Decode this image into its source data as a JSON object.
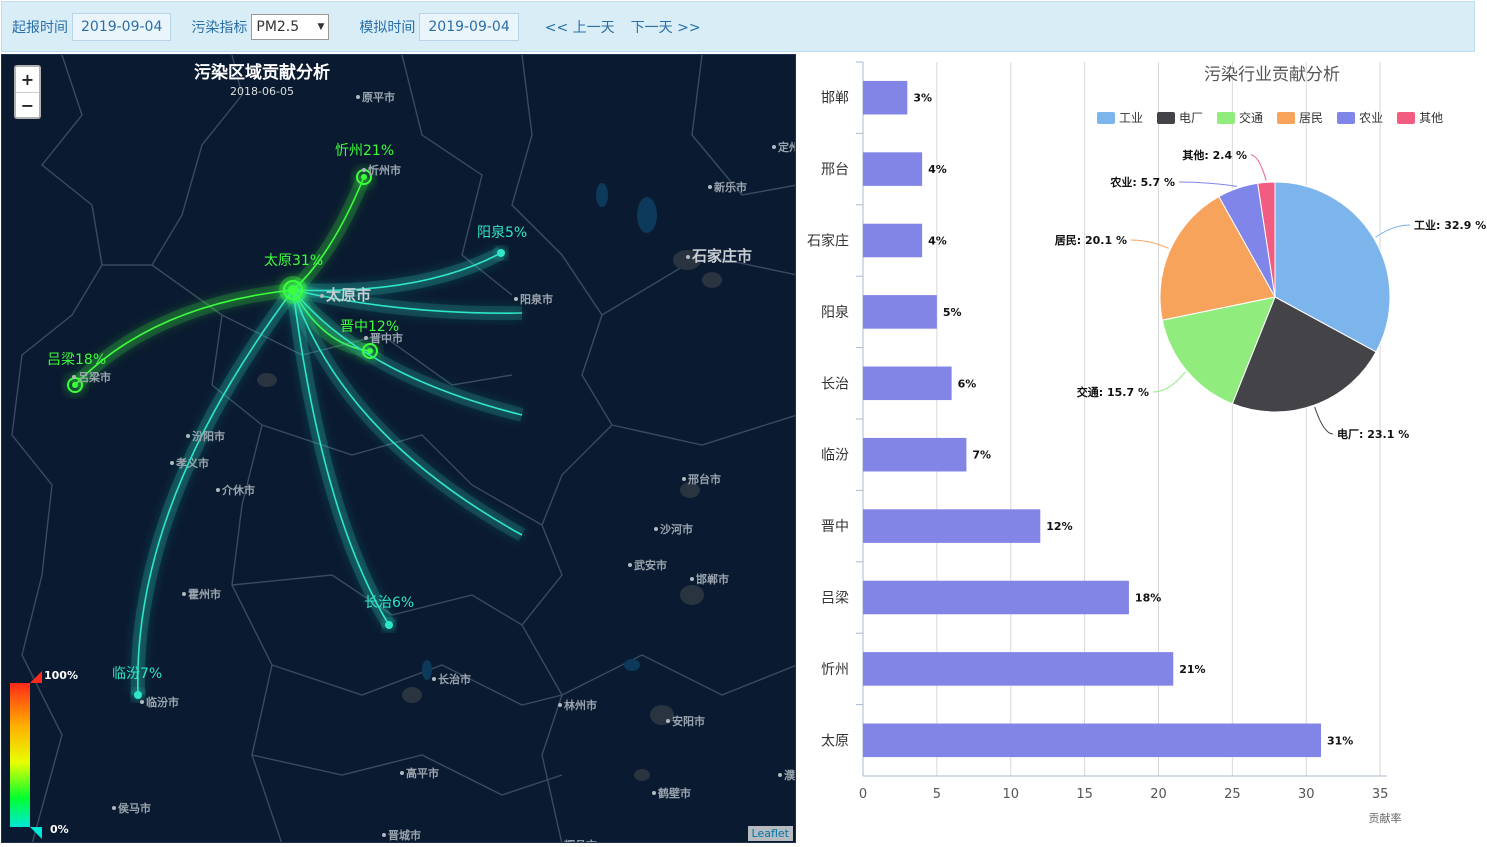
{
  "toolbar": {
    "report_time_label": "起报时间",
    "report_time_value": "2019-09-04",
    "pollutant_label": "污染指标",
    "pollutant_value": "PM2.5",
    "sim_time_label": "模拟时间",
    "sim_time_value": "2019-09-04",
    "prev_day": "<< 上一天",
    "next_day": "下一天 >>"
  },
  "map": {
    "title": "污染区域贡献分析",
    "date": "2018-06-05",
    "zoom_in": "+",
    "zoom_out": "−",
    "attribution": "Leaflet",
    "scale_max": "100%",
    "scale_min": "0%",
    "sources": [
      {
        "label": "太原31%",
        "color": "#3cff3c"
      },
      {
        "label": "忻州21%",
        "color": "#3cff3c"
      },
      {
        "label": "阳泉5%",
        "color": "#2ee6c8"
      },
      {
        "label": "晋中12%",
        "color": "#3cff3c"
      },
      {
        "label": "吕梁18%",
        "color": "#3cff3c"
      },
      {
        "label": "长治6%",
        "color": "#2ee6c8"
      },
      {
        "label": "临汾7%",
        "color": "#2ee6c8"
      }
    ],
    "cities": [
      "原平市",
      "忻州市",
      "新乐市",
      "定州",
      "石家庄市",
      "阳泉市",
      "太原市",
      "晋中市",
      "吕梁市",
      "汾阳市",
      "孝义市",
      "介休市",
      "邢台市",
      "沙河市",
      "武安市",
      "邯郸市",
      "霍州市",
      "临汾市",
      "长治市",
      "林州市",
      "安阳市",
      "高平市",
      "鹤壁市",
      "侯马市",
      "晋城市",
      "辉县市",
      "濮"
    ]
  },
  "chart": {
    "pie_title": "污染行业贡献分析",
    "x_axis_label": "贡献率",
    "colors": {
      "bar": "#8284e6"
    }
  },
  "chart_data": [
    {
      "type": "bar",
      "orientation": "horizontal",
      "categories": [
        "邯郸",
        "邢台",
        "石家庄",
        "阳泉",
        "长治",
        "临汾",
        "晋中",
        "吕梁",
        "忻州",
        "太原"
      ],
      "values": [
        3,
        4,
        4,
        5,
        6,
        7,
        12,
        18,
        21,
        31
      ],
      "data_labels": [
        "3%",
        "4%",
        "4%",
        "5%",
        "6%",
        "7%",
        "12%",
        "18%",
        "21%",
        "31%"
      ],
      "xlabel": "贡献率",
      "xlim": [
        0,
        35
      ],
      "xticks": [
        0,
        5,
        10,
        15,
        20,
        25,
        30,
        35
      ],
      "grid": true
    },
    {
      "type": "pie",
      "title": "污染行业贡献分析",
      "legend": "top",
      "slices": [
        {
          "name": "工业",
          "value": 32.9,
          "label": "工业: 32.9 %",
          "color": "#7cb5ec"
        },
        {
          "name": "电厂",
          "value": 23.1,
          "label": "电厂: 23.1 %",
          "color": "#434348"
        },
        {
          "name": "交通",
          "value": 15.7,
          "label": "交通: 15.7 %",
          "color": "#90ed7d"
        },
        {
          "name": "居民",
          "value": 20.1,
          "label": "居民: 20.1 %",
          "color": "#f7a35c"
        },
        {
          "name": "农业",
          "value": 5.7,
          "label": "农业: 5.7 %",
          "color": "#8085e9"
        },
        {
          "name": "其他",
          "value": 2.4,
          "label": "其他: 2.4 %",
          "color": "#f15c80"
        }
      ]
    }
  ]
}
